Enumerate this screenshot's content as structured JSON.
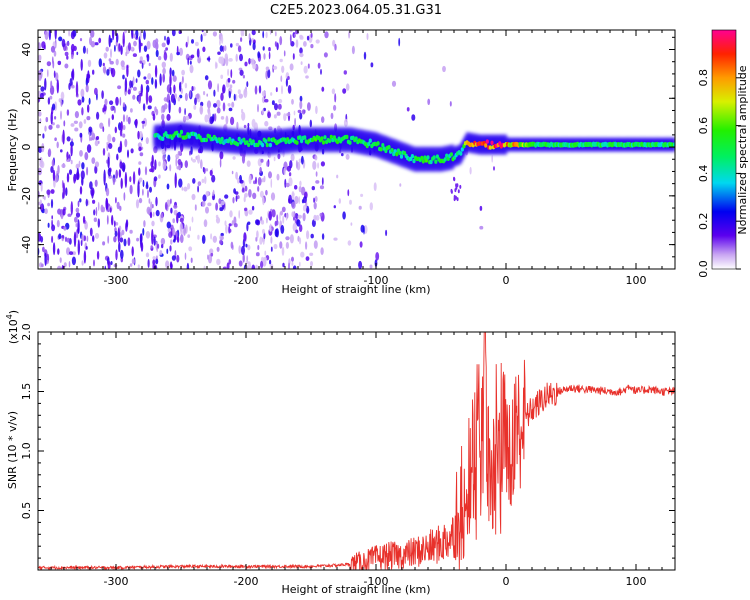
{
  "title": "C2E5.2023.064.05.31.G31",
  "chart_data": [
    {
      "type": "heatmap",
      "xlabel": "Height of straight line (km)",
      "ylabel": "Frequency (Hz)",
      "xlim": [
        -360,
        130
      ],
      "ylim": [
        -50,
        48
      ],
      "xticks": [
        -300,
        -200,
        -100,
        0,
        100
      ],
      "yticks": [
        -40,
        -20,
        0,
        20,
        40
      ],
      "colorbar": {
        "label": "Normalized spectral amplitude",
        "range": [
          0,
          1
        ],
        "ticks": [
          "0.0",
          "0.2",
          "0.4",
          "0.6",
          "0.8"
        ],
        "tick_values": [
          0,
          0.2,
          0.4,
          0.6,
          0.8
        ]
      },
      "ridge": {
        "name": "main spectral line",
        "x": [
          -270,
          -250,
          -220,
          -200,
          -180,
          -160,
          -140,
          -120,
          -100,
          -90,
          -80,
          -70,
          -60,
          -50,
          -40,
          -35,
          -30,
          -20,
          -10,
          0,
          20,
          50,
          80,
          110,
          130
        ],
        "y": [
          4,
          5,
          3,
          2,
          2,
          3,
          3,
          3,
          1,
          -1,
          -3,
          -5,
          -5,
          -5,
          -4,
          -3,
          2,
          1,
          1,
          1,
          1,
          1,
          1,
          1,
          1
        ],
        "amplitude": [
          0.45,
          0.5,
          0.45,
          0.45,
          0.5,
          0.5,
          0.55,
          0.5,
          0.5,
          0.5,
          0.5,
          0.5,
          0.55,
          0.5,
          0.5,
          0.4,
          0.7,
          0.95,
          0.95,
          0.9,
          0.5,
          0.5,
          0.5,
          0.5,
          0.5
        ]
      }
    },
    {
      "type": "line",
      "xlabel": "Height of straight line (km)",
      "ylabel": "SNR (10 * v/v)",
      "multiplier": "(x10",
      "multiplier_exp": "4",
      "multiplier_close": ")",
      "xlim": [
        -360,
        130
      ],
      "ylim": [
        0,
        2.0
      ],
      "xticks": [
        -300,
        -200,
        -100,
        0,
        100
      ],
      "yticks": [
        0.5,
        1.0,
        1.5,
        2.0
      ],
      "ytick_labels": [
        "0.5",
        "1.0",
        "1.5",
        "2.0"
      ],
      "series": [
        {
          "name": "SNR",
          "color": "#e8312b",
          "x": [
            -360,
            -300,
            -250,
            -200,
            -150,
            -130,
            -120,
            -110,
            -100,
            -90,
            -80,
            -70,
            -60,
            -50,
            -40,
            -35,
            -30,
            -25,
            -20,
            -15,
            -10,
            -5,
            0,
            5,
            10,
            20,
            30,
            40,
            50,
            60,
            80,
            90,
            95,
            100,
            110,
            120,
            130
          ],
          "y": [
            0.02,
            0.02,
            0.03,
            0.03,
            0.03,
            0.04,
            0.05,
            0.07,
            0.1,
            0.12,
            0.12,
            0.15,
            0.18,
            0.22,
            0.3,
            0.45,
            0.7,
            1.0,
            1.5,
            1.85,
            1.2,
            1.25,
            1.1,
            1.15,
            1.2,
            1.35,
            1.45,
            1.5,
            1.53,
            1.52,
            1.5,
            1.5,
            1.55,
            1.5,
            1.52,
            1.5,
            1.5
          ]
        }
      ]
    }
  ]
}
